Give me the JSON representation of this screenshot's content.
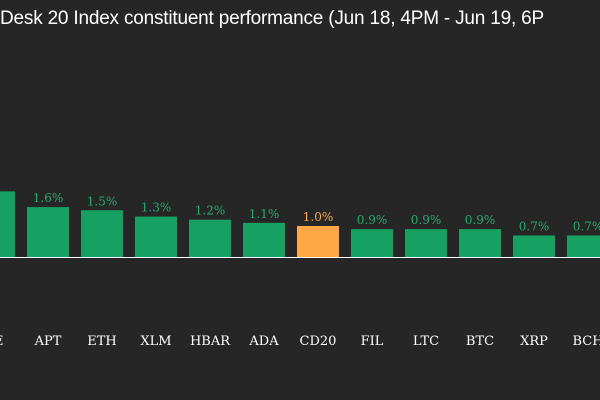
{
  "chart_data": {
    "type": "bar",
    "title": "Desk 20 Index constituent performance (Jun 18, 4PM - Jun 19, 6P",
    "categories": [
      "VE",
      "APT",
      "ETH",
      "XLM",
      "HBAR",
      "ADA",
      "CD20",
      "FIL",
      "LTC",
      "BTC",
      "XRP",
      "BCH"
    ],
    "values": [
      2.1,
      1.6,
      1.5,
      1.3,
      1.2,
      1.1,
      1.0,
      0.9,
      0.9,
      0.9,
      0.7,
      0.7
    ],
    "labels": [
      "%",
      "1.6%",
      "1.5%",
      "1.3%",
      "1.2%",
      "1.1%",
      "1.0%",
      "0.9%",
      "0.9%",
      "0.9%",
      "0.7%",
      "0.7%"
    ],
    "highlight_category": "CD20",
    "colors": {
      "background": "#262626",
      "bar": "#16a062",
      "highlight": "#ffa845",
      "label": "#25ab6e",
      "highlight_label": "#ffa845",
      "axis": "#ffffff",
      "text": "#ffffff"
    },
    "grid": false,
    "legend": "none"
  }
}
